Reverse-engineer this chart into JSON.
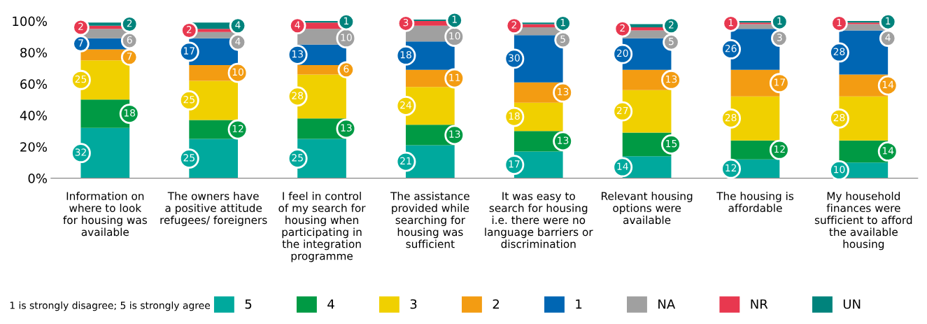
{
  "chart_data": {
    "type": "bar",
    "stacked": true,
    "categories": [
      "Information on\nwhere to look\nfor housing was\navailable",
      "The owners have\na positive attitude\nrefugees/ foreigners",
      "I feel in control\nof my search for\nhousing when\nparticipating in\nthe integration\nprogramme",
      "The assistance\nprovided while\nsearching for\nhousing was\nsufficient",
      "It was easy to\nsearch for housing\ni.e. there were no\nlanguage barriers or\ndiscrimination",
      "Relevant housing\noptions were\navailable",
      "The housing is\naffordable",
      "My household\nfinances were\nsufficient to afford\nthe available\nhousing"
    ],
    "series": [
      {
        "name": "5",
        "color": "#00a99d",
        "values": [
          32,
          25,
          25,
          21,
          17,
          14,
          12,
          10
        ]
      },
      {
        "name": "4",
        "color": "#009a44",
        "values": [
          18,
          12,
          13,
          13,
          13,
          15,
          12,
          14
        ]
      },
      {
        "name": "3",
        "color": "#f0d000",
        "values": [
          25,
          25,
          28,
          24,
          18,
          27,
          28,
          28
        ]
      },
      {
        "name": "2",
        "color": "#f39c12",
        "values": [
          7,
          10,
          6,
          11,
          13,
          13,
          17,
          14
        ]
      },
      {
        "name": "1",
        "color": "#0066b3",
        "values": [
          7,
          17,
          13,
          18,
          30,
          20,
          26,
          28
        ]
      },
      {
        "name": "NA",
        "color": "#a0a0a0",
        "values": [
          6,
          4,
          10,
          10,
          5,
          5,
          3,
          4
        ]
      },
      {
        "name": "NR",
        "color": "#e8384f",
        "values": [
          2,
          2,
          4,
          3,
          2,
          2,
          1,
          1
        ]
      },
      {
        "name": "UN",
        "color": "#00837c",
        "values": [
          2,
          4,
          1,
          1,
          1,
          2,
          1,
          1
        ]
      }
    ],
    "ylim": [
      0,
      101
    ],
    "yticks": [
      {
        "value": 0,
        "label": "0%"
      },
      {
        "value": 20,
        "label": "20%"
      },
      {
        "value": 40,
        "label": "40%"
      },
      {
        "value": 60,
        "label": "60%"
      },
      {
        "value": 80,
        "label": "80%"
      },
      {
        "value": 100,
        "label": "100%"
      }
    ],
    "data_labels": true,
    "grid": false,
    "legend": "bottom",
    "annotations": [
      "1 is strongly disagree; 5 is strongly agree"
    ]
  }
}
